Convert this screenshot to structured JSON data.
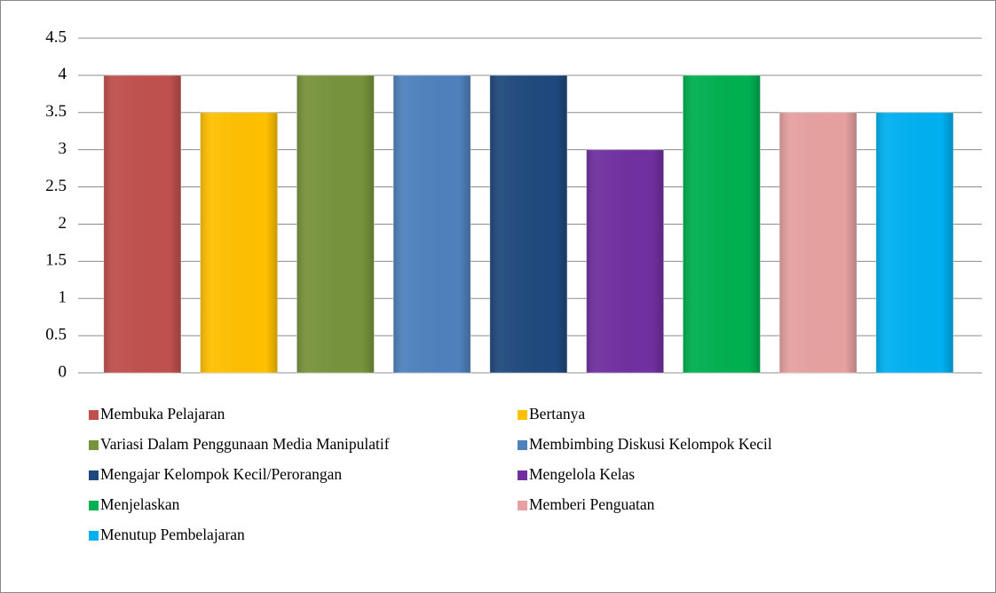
{
  "chart_data": {
    "type": "bar",
    "series": [
      {
        "name": "Membuka Pelajaran",
        "color": "#c0504d",
        "values": [
          4
        ]
      },
      {
        "name": "Bertanya",
        "color": "#ffc000",
        "values": [
          3.5
        ]
      },
      {
        "name": "Variasi Dalam Penggunaan Media Manipulatif",
        "color": "#77933c",
        "values": [
          4
        ]
      },
      {
        "name": "Membimbing Diskusi Kelompok Kecil",
        "color": "#4f81bd",
        "values": [
          4
        ]
      },
      {
        "name": "Mengajar Kelompok Kecil/Perorangan",
        "color": "#1f497d",
        "values": [
          4
        ]
      },
      {
        "name": "Mengelola Kelas",
        "color": "#7030a0",
        "values": [
          3
        ]
      },
      {
        "name": "Menjelaskan",
        "color": "#00b050",
        "values": [
          4
        ]
      },
      {
        "name": "Memberi Penguatan",
        "color": "#e6a0a0",
        "values": [
          3.5
        ]
      },
      {
        "name": "Menutup Pembelajaran",
        "color": "#00b0f0",
        "values": [
          3.5
        ]
      }
    ],
    "ylim": [
      0,
      4.5
    ],
    "yticks": [
      0,
      0.5,
      1,
      1.5,
      2,
      2.5,
      3,
      3.5,
      4,
      4.5
    ],
    "grid": true
  }
}
